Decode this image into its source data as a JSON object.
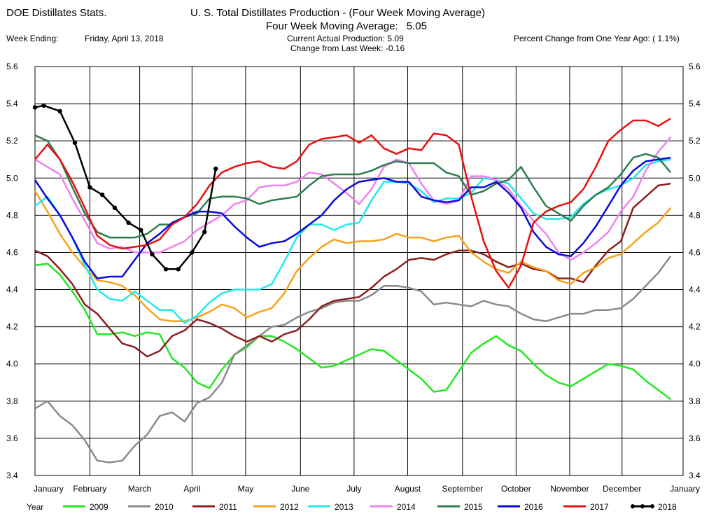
{
  "header": {
    "app_title": "DOE Distillates Stats.",
    "chart_title": "U. S. Total Distillates Production - (Four Week Moving Average)",
    "subtitle_label": "Four Week Moving Average:",
    "subtitle_value": "5.05",
    "week_ending_label": "Week Ending:",
    "week_ending_value": "Friday, April 13, 2018",
    "current_production": "Current Actual Production:   5.09",
    "change_last_week": "Change from Last Week: -0.16",
    "pct_change": "Percent Change from One Year Ago: ( 1.1%)"
  },
  "chart_data": {
    "type": "line",
    "title": "U. S. Total Distillates Production - (Four Week Moving Average)",
    "subtitle": "Four Week Moving Average:   5.05",
    "xlabel": "",
    "ylabel": "",
    "ylim": [
      3.4,
      5.6
    ],
    "yticks": [
      3.4,
      3.6,
      3.8,
      4.0,
      4.2,
      4.4,
      4.6,
      4.8,
      5.0,
      5.2,
      5.4,
      5.6
    ],
    "ytick_labels": [
      "3.4",
      "3.6",
      "3.8",
      "4.0",
      "4.2",
      "4.4",
      "4.6",
      "4.8",
      "5.0",
      "5.2",
      "5.4",
      "5.6"
    ],
    "x_unit": "week of year",
    "xlim": [
      1,
      53
    ],
    "month_labels": [
      "January",
      "February",
      "March",
      "April",
      "May",
      "June",
      "July",
      "August",
      "September",
      "October",
      "November",
      "December",
      "January"
    ],
    "month_starts": [
      1,
      5.4,
      9.4,
      13.6,
      17.9,
      22.3,
      26.6,
      30.9,
      35.3,
      39.6,
      43.9,
      48.1,
      53
    ],
    "grid": true,
    "right_axis_mirror": true,
    "legend_title": "Year",
    "legend_position": "bottom",
    "series": [
      {
        "name": "2009",
        "color": "#22e822",
        "x": [
          1,
          2,
          3,
          4,
          5,
          6,
          7,
          8,
          9,
          10,
          11,
          12,
          13,
          14,
          15,
          16,
          17,
          18,
          19,
          20,
          21,
          22,
          23,
          24,
          25,
          26,
          27,
          28,
          29,
          30,
          31,
          32,
          33,
          34,
          35,
          36,
          37,
          38,
          39,
          40,
          41,
          42,
          43,
          44,
          45,
          46,
          47,
          48,
          49,
          50,
          51,
          52
        ],
        "values": [
          4.53,
          4.54,
          4.48,
          4.39,
          4.29,
          4.16,
          4.16,
          4.17,
          4.15,
          4.17,
          4.16,
          4.03,
          3.98,
          3.9,
          3.87,
          3.97,
          4.05,
          4.09,
          4.15,
          4.15,
          4.12,
          4.08,
          4.03,
          3.98,
          3.99,
          4.02,
          4.05,
          4.08,
          4.07,
          4.02,
          3.97,
          3.92,
          3.85,
          3.86,
          3.96,
          4.06,
          4.11,
          4.15,
          4.1,
          4.07,
          4.0,
          3.94,
          3.9,
          3.88,
          3.92,
          3.96,
          4.0,
          3.99,
          3.97,
          3.91,
          3.86,
          3.81
        ]
      },
      {
        "name": "2010",
        "color": "#8a8a8a",
        "x": [
          1,
          2,
          3,
          4,
          5,
          6,
          7,
          8,
          9,
          10,
          11,
          12,
          13,
          14,
          15,
          16,
          17,
          18,
          19,
          20,
          21,
          22,
          23,
          24,
          25,
          26,
          27,
          28,
          29,
          30,
          31,
          32,
          33,
          34,
          35,
          36,
          37,
          38,
          39,
          40,
          41,
          42,
          43,
          44,
          45,
          46,
          47,
          48,
          49,
          50,
          51,
          52
        ],
        "values": [
          3.76,
          3.8,
          3.72,
          3.67,
          3.59,
          3.48,
          3.47,
          3.48,
          3.56,
          3.62,
          3.72,
          3.74,
          3.69,
          3.79,
          3.82,
          3.9,
          4.05,
          4.1,
          4.15,
          4.2,
          4.21,
          4.25,
          4.28,
          4.3,
          4.33,
          4.34,
          4.34,
          4.37,
          4.42,
          4.42,
          4.41,
          4.39,
          4.32,
          4.33,
          4.32,
          4.31,
          4.34,
          4.32,
          4.31,
          4.27,
          4.24,
          4.23,
          4.25,
          4.27,
          4.27,
          4.29,
          4.29,
          4.3,
          4.35,
          4.42,
          4.49,
          4.58
        ]
      },
      {
        "name": "2011",
        "color": "#8b2020",
        "x": [
          1,
          2,
          3,
          4,
          5,
          6,
          7,
          8,
          9,
          10,
          11,
          12,
          13,
          14,
          15,
          16,
          17,
          18,
          19,
          20,
          21,
          22,
          23,
          24,
          25,
          26,
          27,
          28,
          29,
          30,
          31,
          32,
          33,
          34,
          35,
          36,
          37,
          38,
          39,
          40,
          41,
          42,
          43,
          44,
          45,
          46,
          47,
          48,
          49,
          50,
          51,
          52
        ],
        "values": [
          4.61,
          4.58,
          4.51,
          4.43,
          4.32,
          4.27,
          4.19,
          4.11,
          4.09,
          4.04,
          4.07,
          4.15,
          4.18,
          4.24,
          4.22,
          4.19,
          4.15,
          4.12,
          4.15,
          4.12,
          4.16,
          4.18,
          4.24,
          4.31,
          4.34,
          4.35,
          4.36,
          4.41,
          4.47,
          4.51,
          4.56,
          4.57,
          4.56,
          4.59,
          4.61,
          4.61,
          4.59,
          4.55,
          4.52,
          4.54,
          4.51,
          4.5,
          4.46,
          4.46,
          4.44,
          4.53,
          4.61,
          4.66,
          4.84,
          4.9,
          4.96,
          4.97
        ]
      },
      {
        "name": "2012",
        "color": "#f5a21c",
        "x": [
          1,
          2,
          3,
          4,
          5,
          6,
          7,
          8,
          9,
          10,
          11,
          12,
          13,
          14,
          15,
          16,
          17,
          18,
          19,
          20,
          21,
          22,
          23,
          24,
          25,
          26,
          27,
          28,
          29,
          30,
          31,
          32,
          33,
          34,
          35,
          36,
          37,
          38,
          39,
          40,
          41,
          42,
          43,
          44,
          45,
          46,
          47,
          48,
          49,
          50,
          51,
          52
        ],
        "values": [
          4.93,
          4.82,
          4.7,
          4.6,
          4.52,
          4.45,
          4.44,
          4.42,
          4.37,
          4.3,
          4.24,
          4.23,
          4.23,
          4.25,
          4.28,
          4.32,
          4.3,
          4.25,
          4.28,
          4.3,
          4.38,
          4.5,
          4.57,
          4.63,
          4.67,
          4.65,
          4.66,
          4.66,
          4.67,
          4.7,
          4.68,
          4.68,
          4.66,
          4.68,
          4.69,
          4.6,
          4.55,
          4.51,
          4.49,
          4.55,
          4.52,
          4.5,
          4.45,
          4.43,
          4.49,
          4.52,
          4.57,
          4.59,
          4.65,
          4.71,
          4.76,
          4.84
        ]
      },
      {
        "name": "2013",
        "color": "#22e8ee",
        "x": [
          1,
          2,
          3,
          4,
          5,
          6,
          7,
          8,
          9,
          10,
          11,
          12,
          13,
          14,
          15,
          16,
          17,
          18,
          19,
          20,
          21,
          22,
          23,
          24,
          25,
          26,
          27,
          28,
          29,
          30,
          31,
          32,
          33,
          34,
          35,
          36,
          37,
          38,
          39,
          40,
          41,
          42,
          43,
          44,
          45,
          46,
          47,
          48,
          49,
          50,
          51,
          52
        ],
        "values": [
          4.85,
          4.9,
          4.8,
          4.68,
          4.53,
          4.4,
          4.35,
          4.34,
          4.39,
          4.34,
          4.29,
          4.29,
          4.22,
          4.26,
          4.33,
          4.38,
          4.4,
          4.4,
          4.4,
          4.43,
          4.55,
          4.68,
          4.75,
          4.75,
          4.72,
          4.75,
          4.76,
          4.88,
          4.98,
          4.98,
          4.97,
          4.93,
          4.87,
          4.89,
          4.89,
          4.92,
          5.0,
          4.99,
          4.97,
          4.89,
          4.81,
          4.78,
          4.78,
          4.79,
          4.86,
          4.91,
          4.94,
          4.96,
          5.0,
          5.07,
          5.09,
          5.1
        ]
      },
      {
        "name": "2014",
        "color": "#ee82ee",
        "x": [
          1,
          2,
          3,
          4,
          5,
          6,
          7,
          8,
          9,
          10,
          11,
          12,
          13,
          14,
          15,
          16,
          17,
          18,
          19,
          20,
          21,
          22,
          23,
          24,
          25,
          26,
          27,
          28,
          29,
          30,
          31,
          32,
          33,
          34,
          35,
          36,
          37,
          38,
          39,
          40,
          41,
          42,
          43,
          44,
          45,
          46,
          47,
          48,
          49,
          50,
          51,
          52
        ],
        "values": [
          5.1,
          5.06,
          5.02,
          4.89,
          4.77,
          4.65,
          4.62,
          4.63,
          4.6,
          4.6,
          4.6,
          4.63,
          4.66,
          4.72,
          4.76,
          4.8,
          4.86,
          4.88,
          4.95,
          4.96,
          4.96,
          4.98,
          5.03,
          5.02,
          4.97,
          4.92,
          4.86,
          4.94,
          5.06,
          5.1,
          5.08,
          4.97,
          4.88,
          4.86,
          4.88,
          5.01,
          5.01,
          4.99,
          4.94,
          4.85,
          4.77,
          4.7,
          4.6,
          4.56,
          4.6,
          4.65,
          4.71,
          4.82,
          4.9,
          5.04,
          5.14,
          5.22
        ]
      },
      {
        "name": "2015",
        "color": "#2e7d4f",
        "x": [
          1,
          2,
          3,
          4,
          5,
          6,
          7,
          8,
          9,
          10,
          11,
          12,
          13,
          14,
          15,
          16,
          17,
          18,
          19,
          20,
          21,
          22,
          23,
          24,
          25,
          26,
          27,
          28,
          29,
          30,
          31,
          32,
          33,
          34,
          35,
          36,
          37,
          38,
          39,
          40,
          41,
          42,
          43,
          44,
          45,
          46,
          47,
          48,
          49,
          50,
          51,
          52
        ],
        "values": [
          5.23,
          5.2,
          5.1,
          4.95,
          4.81,
          4.71,
          4.68,
          4.68,
          4.68,
          4.7,
          4.75,
          4.75,
          4.79,
          4.81,
          4.89,
          4.9,
          4.9,
          4.89,
          4.86,
          4.88,
          4.89,
          4.9,
          4.96,
          5.01,
          5.02,
          5.02,
          5.02,
          5.04,
          5.07,
          5.09,
          5.08,
          5.08,
          5.08,
          5.03,
          5.01,
          4.91,
          4.93,
          4.97,
          4.99,
          5.06,
          4.95,
          4.85,
          4.81,
          4.77,
          4.85,
          4.91,
          4.95,
          5.02,
          5.11,
          5.13,
          5.11,
          5.03
        ]
      },
      {
        "name": "2016",
        "color": "#0a0adc",
        "x": [
          1,
          2,
          3,
          4,
          5,
          6,
          7,
          8,
          9,
          10,
          11,
          12,
          13,
          14,
          15,
          16,
          17,
          18,
          19,
          20,
          21,
          22,
          23,
          24,
          25,
          26,
          27,
          28,
          29,
          30,
          31,
          32,
          33,
          34,
          35,
          36,
          37,
          38,
          39,
          40,
          41,
          42,
          43,
          44,
          45,
          46,
          47,
          48,
          49,
          50,
          51,
          52
        ],
        "values": [
          4.99,
          4.89,
          4.8,
          4.68,
          4.55,
          4.46,
          4.47,
          4.47,
          4.56,
          4.65,
          4.7,
          4.76,
          4.79,
          4.82,
          4.82,
          4.81,
          4.74,
          4.68,
          4.63,
          4.65,
          4.66,
          4.7,
          4.75,
          4.8,
          4.88,
          4.94,
          4.98,
          4.99,
          5.0,
          4.98,
          4.98,
          4.9,
          4.88,
          4.87,
          4.88,
          4.95,
          4.95,
          4.98,
          4.92,
          4.84,
          4.71,
          4.63,
          4.59,
          4.58,
          4.65,
          4.74,
          4.85,
          4.96,
          5.04,
          5.09,
          5.1,
          5.11
        ]
      },
      {
        "name": "2017",
        "color": "#e81010",
        "x": [
          1,
          2,
          3,
          4,
          5,
          6,
          7,
          8,
          9,
          10,
          11,
          12,
          13,
          14,
          15,
          16,
          17,
          18,
          19,
          20,
          21,
          22,
          23,
          24,
          25,
          26,
          27,
          28,
          29,
          30,
          31,
          32,
          33,
          34,
          35,
          36,
          37,
          38,
          39,
          40,
          41,
          42,
          43,
          44,
          45,
          46,
          47,
          48,
          49,
          50,
          51,
          52
        ],
        "values": [
          5.1,
          5.18,
          5.1,
          4.98,
          4.84,
          4.69,
          4.64,
          4.62,
          4.63,
          4.64,
          4.67,
          4.75,
          4.79,
          4.86,
          4.96,
          5.03,
          5.06,
          5.08,
          5.09,
          5.06,
          5.05,
          5.09,
          5.18,
          5.21,
          5.22,
          5.23,
          5.19,
          5.23,
          5.16,
          5.13,
          5.16,
          5.15,
          5.24,
          5.23,
          5.18,
          4.9,
          4.66,
          4.5,
          4.41,
          4.53,
          4.76,
          4.82,
          4.85,
          4.87,
          4.94,
          5.06,
          5.2,
          5.26,
          5.31,
          5.31,
          5.28,
          5.32
        ]
      },
      {
        "name": "2018",
        "color": "#000000",
        "markers": true,
        "x": [
          1,
          1.7,
          3,
          4.2,
          5.4,
          6.4,
          7.4,
          8.5,
          9.5,
          10.4,
          11.5,
          12.5,
          13.6,
          14.6,
          15.5
        ],
        "values": [
          5.38,
          5.39,
          5.36,
          5.19,
          4.95,
          4.91,
          4.84,
          4.76,
          4.72,
          4.59,
          4.51,
          4.51,
          4.6,
          4.71,
          5.05
        ]
      }
    ]
  }
}
